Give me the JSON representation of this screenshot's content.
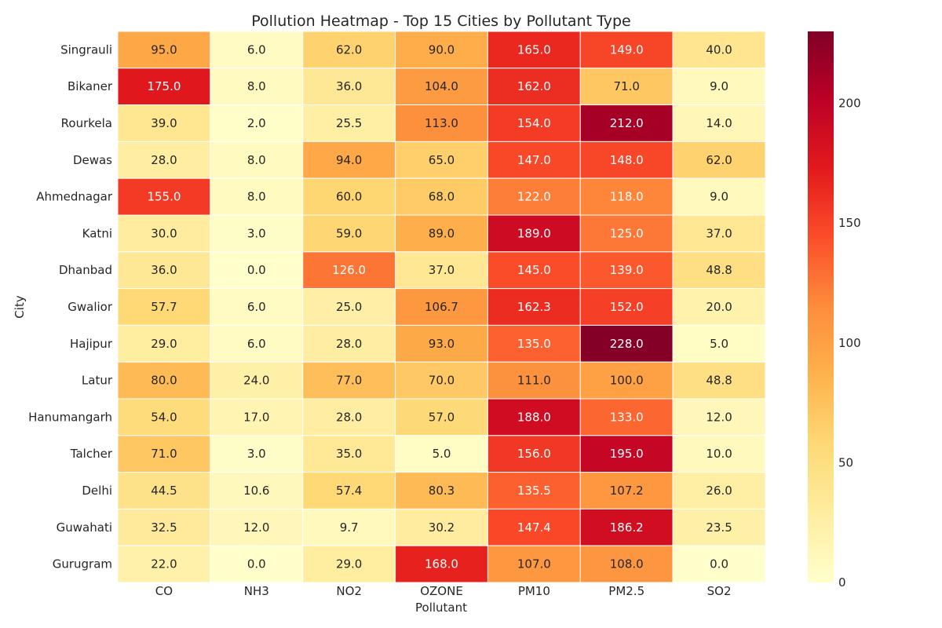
{
  "chart_data": {
    "type": "heatmap",
    "title": "Pollution Heatmap - Top 15 Cities by Pollutant Type",
    "xlabel": "Pollutant",
    "ylabel": "City",
    "columns": [
      "CO",
      "NH3",
      "NO2",
      "OZONE",
      "PM10",
      "PM2.5",
      "SO2"
    ],
    "rows": [
      "Singrauli",
      "Bikaner",
      "Rourkela",
      "Dewas",
      "Ahmednagar",
      "Katni",
      "Dhanbad",
      "Gwalior",
      "Hajipur",
      "Latur",
      "Hanumangarh",
      "Talcher",
      "Delhi",
      "Guwahati",
      "Gurugram"
    ],
    "values": [
      [
        95.0,
        6.0,
        62.0,
        90.0,
        165.0,
        149.0,
        40.0
      ],
      [
        175.0,
        8.0,
        36.0,
        104.0,
        162.0,
        71.0,
        9.0
      ],
      [
        39.0,
        2.0,
        25.5,
        113.0,
        154.0,
        212.0,
        14.0
      ],
      [
        28.0,
        8.0,
        94.0,
        65.0,
        147.0,
        148.0,
        62.0
      ],
      [
        155.0,
        8.0,
        60.0,
        68.0,
        122.0,
        118.0,
        9.0
      ],
      [
        30.0,
        3.0,
        59.0,
        89.0,
        189.0,
        125.0,
        37.0
      ],
      [
        36.0,
        0.0,
        126.0,
        37.0,
        145.0,
        139.0,
        48.8
      ],
      [
        57.7,
        6.0,
        25.0,
        106.7,
        162.3,
        152.0,
        20.0
      ],
      [
        29.0,
        6.0,
        28.0,
        93.0,
        135.0,
        228.0,
        5.0
      ],
      [
        80.0,
        24.0,
        77.0,
        70.0,
        111.0,
        100.0,
        48.8
      ],
      [
        54.0,
        17.0,
        28.0,
        57.0,
        188.0,
        133.0,
        12.0
      ],
      [
        71.0,
        3.0,
        35.0,
        5.0,
        156.0,
        195.0,
        10.0
      ],
      [
        44.5,
        10.6,
        57.4,
        80.3,
        135.5,
        107.2,
        26.0
      ],
      [
        32.5,
        12.0,
        9.7,
        30.2,
        147.4,
        186.2,
        23.5
      ],
      [
        22.0,
        0.0,
        29.0,
        168.0,
        107.0,
        108.0,
        0.0
      ]
    ],
    "value_format": "1 decimal",
    "colormap": "YlOrRd",
    "colorbar": {
      "min": 0,
      "max": 230,
      "ticks": [
        0,
        50,
        100,
        150,
        200
      ]
    }
  }
}
